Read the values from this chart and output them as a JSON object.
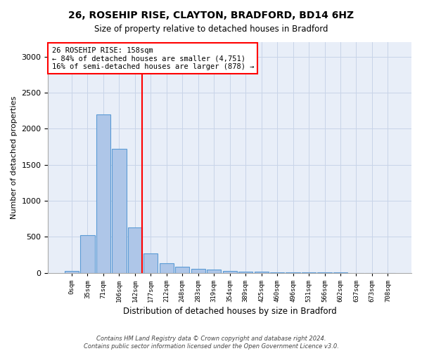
{
  "title": "26, ROSEHIP RISE, CLAYTON, BRADFORD, BD14 6HZ",
  "subtitle": "Size of property relative to detached houses in Bradford",
  "xlabel": "Distribution of detached houses by size in Bradford",
  "ylabel": "Number of detached properties",
  "bin_labels": [
    "0sqm",
    "35sqm",
    "71sqm",
    "106sqm",
    "142sqm",
    "177sqm",
    "212sqm",
    "248sqm",
    "283sqm",
    "319sqm",
    "354sqm",
    "389sqm",
    "425sqm",
    "460sqm",
    "496sqm",
    "531sqm",
    "566sqm",
    "602sqm",
    "637sqm",
    "673sqm",
    "708sqm"
  ],
  "bar_values": [
    28,
    520,
    2200,
    1720,
    630,
    270,
    135,
    85,
    60,
    45,
    30,
    20,
    15,
    10,
    8,
    5,
    4,
    3,
    2,
    2,
    1
  ],
  "bar_color": "#aec6e8",
  "bar_edge_color": "#5b9bd5",
  "bar_edge_width": 0.8,
  "grid_color": "#c8d4e8",
  "bg_color": "#e8eef8",
  "property_line_color": "red",
  "annotation_text": "26 ROSEHIP RISE: 158sqm\n← 84% of detached houses are smaller (4,751)\n16% of semi-detached houses are larger (878) →",
  "ylim": [
    0,
    3200
  ],
  "yticks": [
    0,
    500,
    1000,
    1500,
    2000,
    2500,
    3000
  ],
  "footer_line1": "Contains HM Land Registry data © Crown copyright and database right 2024.",
  "footer_line2": "Contains public sector information licensed under the Open Government Licence v3.0."
}
